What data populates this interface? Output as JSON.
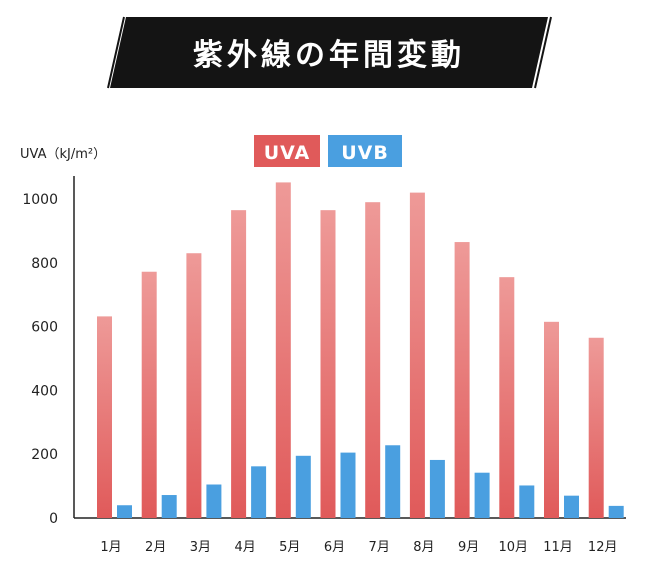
{
  "title": "紫外線の年間変動",
  "colors": {
    "uva": "#e05a5a",
    "uva_light": "#ee9a98",
    "uvb": "#4a9fe0",
    "banner": "#141414",
    "axis": "#222222"
  },
  "chart_data": {
    "type": "bar",
    "title": "紫外線の年間変動",
    "ylabel": "UVA（kJ/m²）",
    "xlabel": "",
    "ylim": [
      0,
      1080
    ],
    "yticks": [
      0,
      200,
      400,
      600,
      800,
      1000
    ],
    "grid": false,
    "legend_position": "top-center",
    "categories": [
      "1月",
      "2月",
      "3月",
      "4月",
      "5月",
      "6月",
      "7月",
      "8月",
      "9月",
      "10月",
      "11月",
      "12月"
    ],
    "series": [
      {
        "name": "UVA",
        "values": [
          632,
          772,
          830,
          965,
          1052,
          965,
          990,
          1020,
          865,
          755,
          615,
          565
        ]
      },
      {
        "name": "UVB",
        "values": [
          40,
          72,
          105,
          162,
          195,
          205,
          228,
          182,
          142,
          102,
          70,
          38
        ]
      }
    ]
  }
}
